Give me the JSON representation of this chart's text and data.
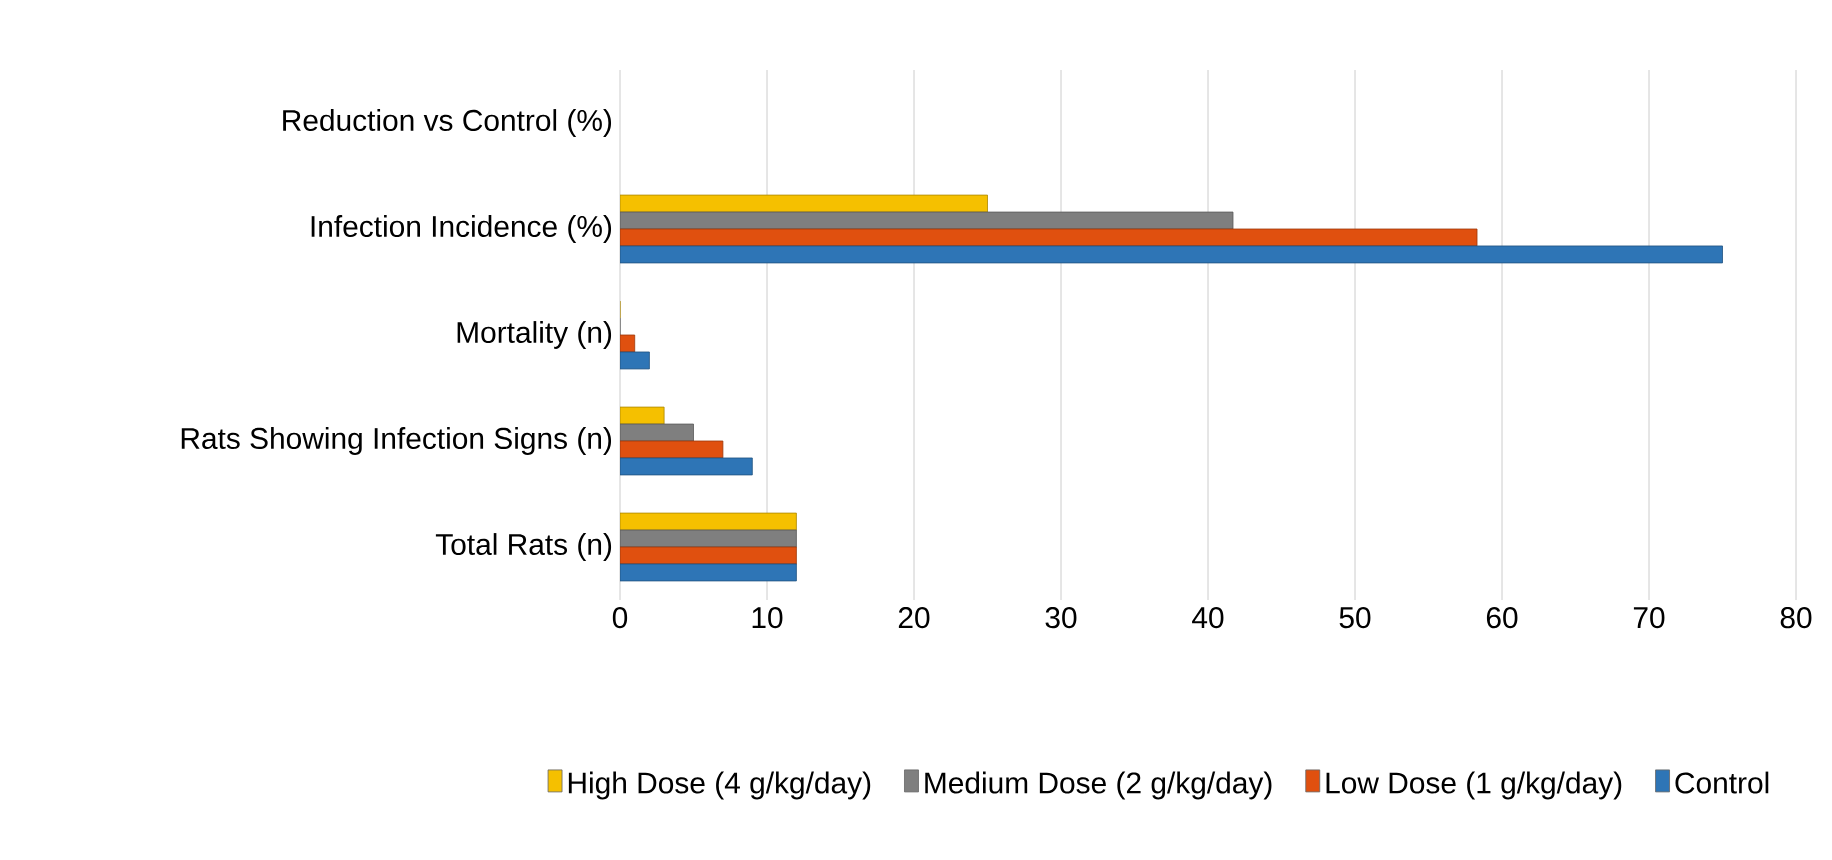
{
  "chart_data": {
    "type": "bar",
    "orientation": "horizontal",
    "categories": [
      "Reduction vs Control (%)",
      "Infection Incidence (%)",
      "Mortality (n)",
      "Rats Showing Infection Signs (n)",
      "Total Rats (n)"
    ],
    "series": [
      {
        "name": "High Dose (4 g/kg/day)",
        "color": "#f5c000",
        "values": [
          null,
          25,
          0,
          3,
          12
        ]
      },
      {
        "name": "Medium Dose (2 g/kg/day)",
        "color": "#7f7f7f",
        "values": [
          null,
          41.7,
          0,
          5,
          12
        ]
      },
      {
        "name": "Low Dose (1 g/kg/day)",
        "color": "#e0500f",
        "values": [
          null,
          58.3,
          1,
          7,
          12
        ]
      },
      {
        "name": "Control",
        "color": "#2e75b6",
        "values": [
          null,
          75,
          2,
          9,
          12
        ]
      }
    ],
    "xlim": [
      0,
      80
    ],
    "xticks": [
      0,
      10,
      20,
      30,
      40,
      50,
      60,
      70,
      80
    ],
    "grid": "x",
    "legend": "bottom"
  }
}
